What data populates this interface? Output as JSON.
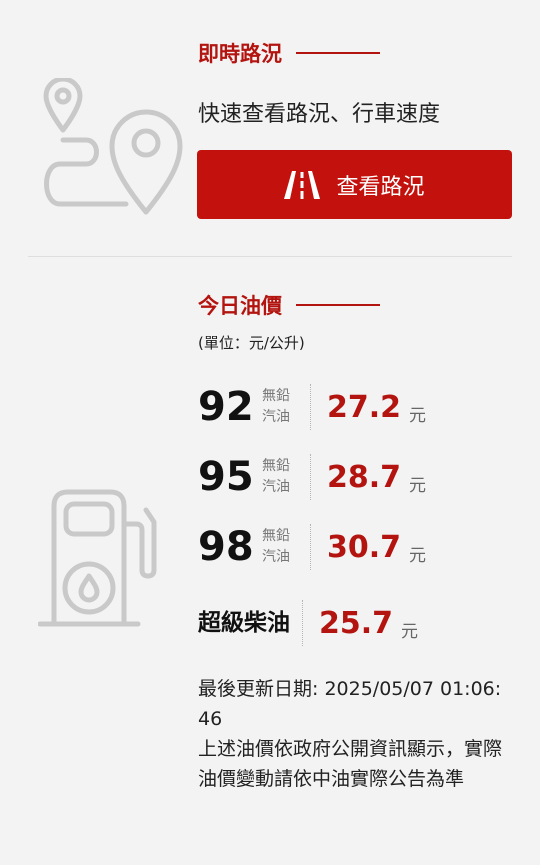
{
  "traffic": {
    "title": "即時路況",
    "description": "快速查看路況、行車速度",
    "button_label": "查看路況"
  },
  "oil": {
    "title": "今日油價",
    "unit": "(單位：元/公升)",
    "rows": [
      {
        "grade": "92",
        "fuel_type": [
          "無鉛",
          "汽油"
        ],
        "price": "27.2",
        "currency": "元"
      },
      {
        "grade": "95",
        "fuel_type": [
          "無鉛",
          "汽油"
        ],
        "price": "28.7",
        "currency": "元"
      },
      {
        "grade": "98",
        "fuel_type": [
          "無鉛",
          "汽油"
        ],
        "price": "30.7",
        "currency": "元"
      },
      {
        "grade": "超級柴油",
        "price": "25.7",
        "currency": "元"
      }
    ],
    "update_label": "最後更新日期: 2025/05/07 01:06:46",
    "notice": "上述油價依政府公開資訊顯示，實際油價變動請依中油實際公告為準"
  },
  "colors": {
    "accent": "#b3140f",
    "button_bg": "#c3120d",
    "icon_gray": "#c9c9c9"
  },
  "icons": {
    "map": "map-route-pin-icon",
    "button": "road-icon",
    "pump": "fuel-pump-icon"
  }
}
